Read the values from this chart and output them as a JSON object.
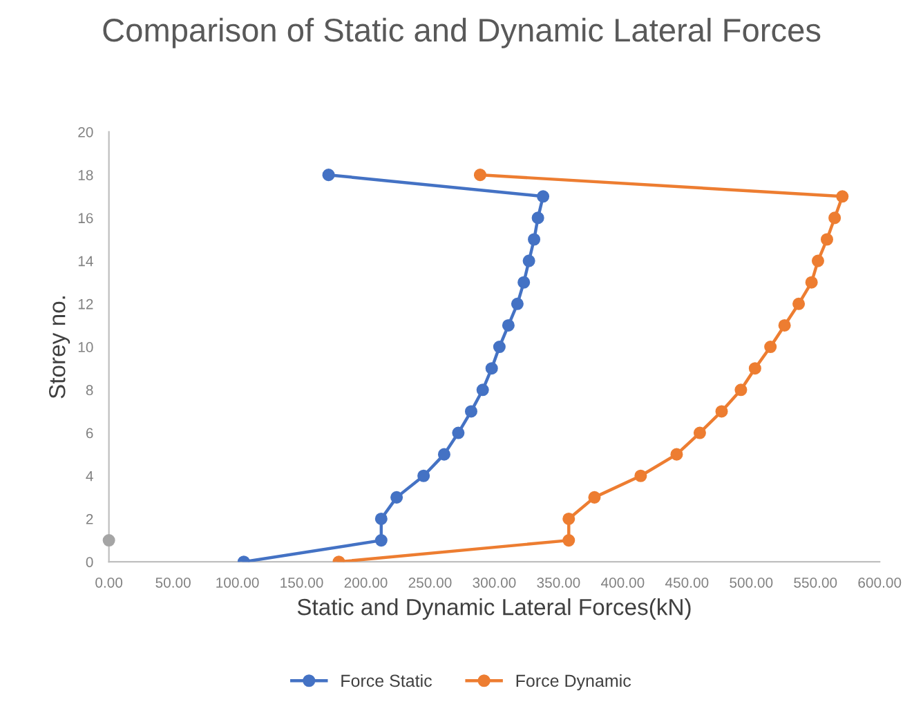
{
  "chart_data": {
    "type": "line",
    "title": "Comparison of Static and Dynamic Lateral Forces",
    "xlabel": "Static and Dynamic Lateral Forces(kN)",
    "ylabel": "Storey no.",
    "xlim": [
      0,
      600
    ],
    "xticks": [
      {
        "value": 0,
        "label": "0.00"
      },
      {
        "value": 50,
        "label": "50.00"
      },
      {
        "value": 100,
        "label": "100.00"
      },
      {
        "value": 150,
        "label": "150.00"
      },
      {
        "value": 200,
        "label": "200.00"
      },
      {
        "value": 250,
        "label": "250.00"
      },
      {
        "value": 300,
        "label": "300.00"
      },
      {
        "value": 350,
        "label": "350.00"
      },
      {
        "value": 400,
        "label": "400.00"
      },
      {
        "value": 450,
        "label": "450.00"
      },
      {
        "value": 500,
        "label": "500.00"
      },
      {
        "value": 550,
        "label": "550.00"
      },
      {
        "value": 600,
        "label": "600.00"
      }
    ],
    "ylim": [
      0,
      20
    ],
    "yticks": [
      0,
      2,
      4,
      6,
      8,
      10,
      12,
      14,
      16,
      18,
      20
    ],
    "grid": false,
    "legend": "bottom",
    "marker": "circle",
    "line_style": "solid",
    "series": [
      {
        "name": "Force Static",
        "color": "#4472c4",
        "x": [
          105,
          212,
          212,
          224,
          245,
          261,
          272,
          282,
          291,
          298,
          304,
          311,
          318,
          323,
          327,
          331,
          334,
          338,
          171
        ],
        "values": [
          0,
          1,
          2,
          3,
          4,
          5,
          6,
          7,
          8,
          9,
          10,
          11,
          12,
          13,
          14,
          15,
          16,
          17,
          18
        ]
      },
      {
        "name": "Force Dynamic",
        "color": "#ed7d31",
        "x": [
          179,
          358,
          358,
          378,
          414,
          442,
          460,
          477,
          492,
          503,
          515,
          526,
          537,
          547,
          552,
          559,
          565,
          571,
          289
        ],
        "values": [
          0,
          1,
          2,
          3,
          4,
          5,
          6,
          7,
          8,
          9,
          10,
          11,
          12,
          13,
          14,
          15,
          16,
          17,
          18
        ]
      },
      {
        "type": "scatter",
        "color": "#a5a5a5",
        "x": [
          0
        ],
        "values": [
          1
        ]
      }
    ]
  }
}
